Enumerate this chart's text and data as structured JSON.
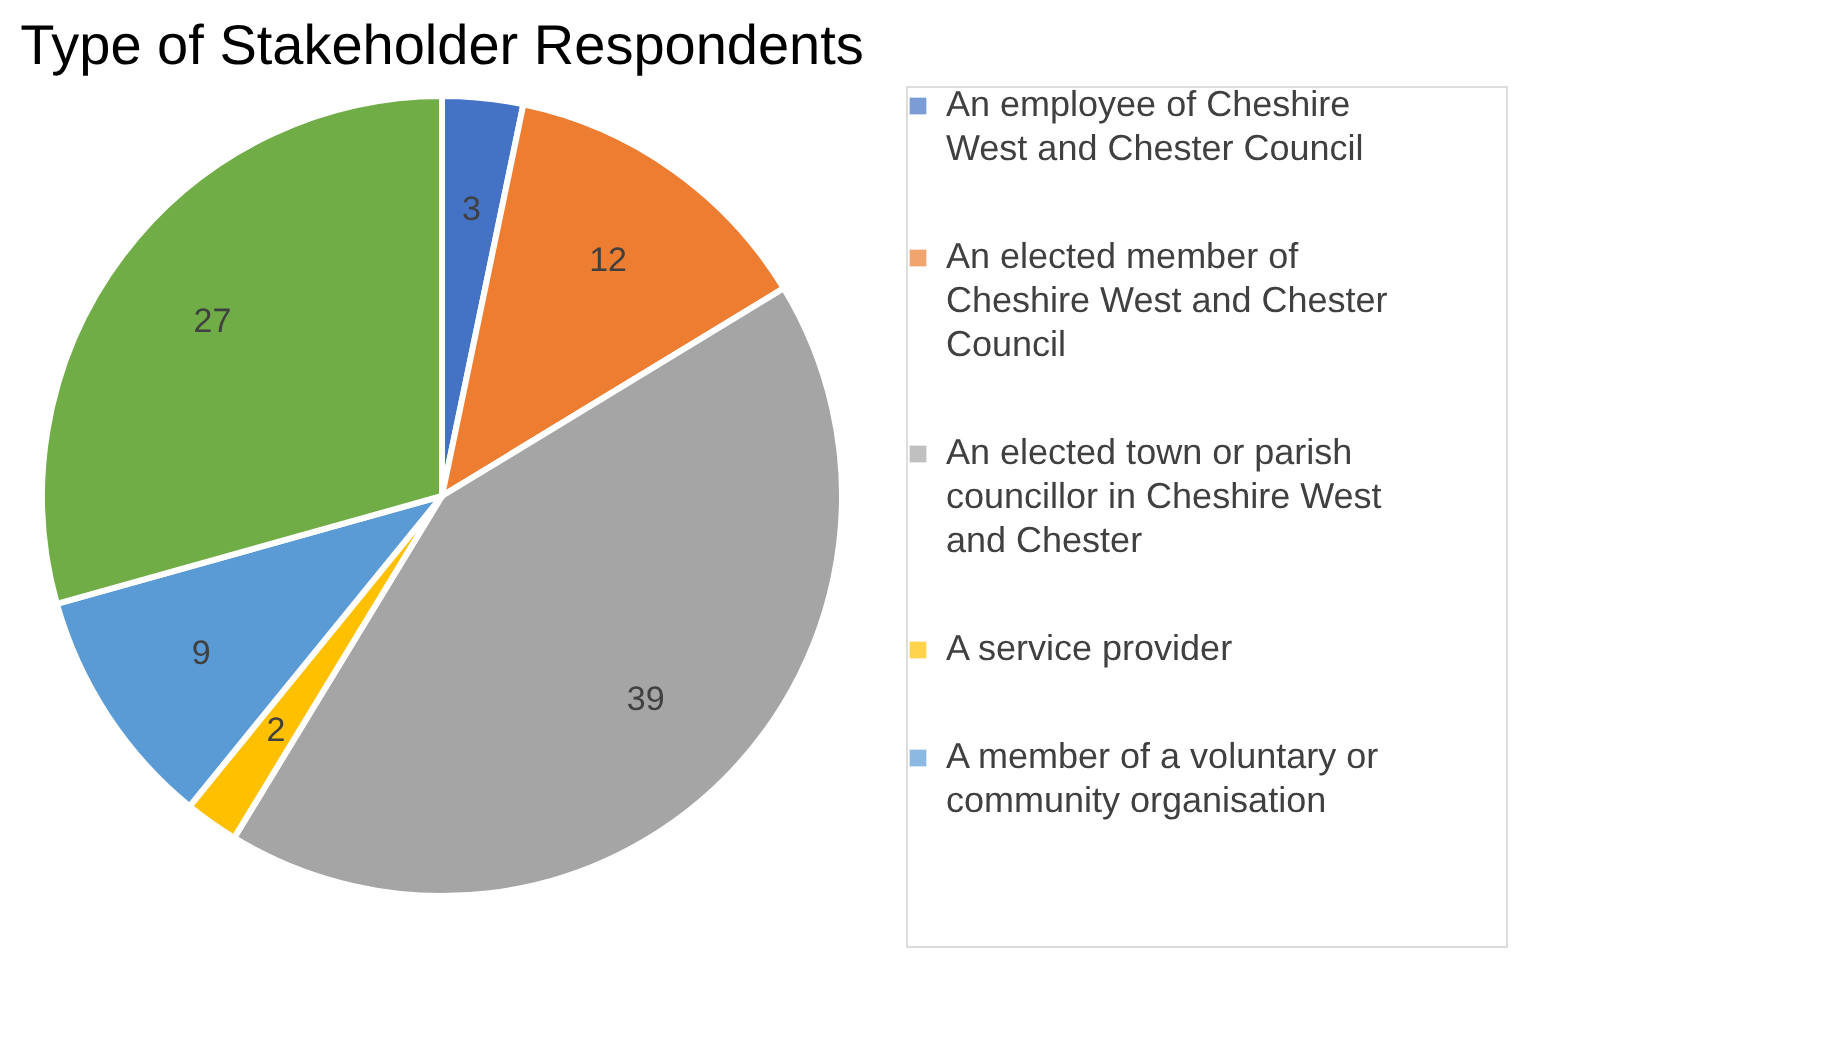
{
  "chart_data": {
    "type": "pie",
    "title": "Type of Stakeholder Respondents",
    "categories": [
      "An employee of Cheshire West and Chester Council",
      "An elected member of Cheshire West and Chester Council",
      "An elected town or parish councillor in Cheshire West and Chester",
      "A service provider",
      "A member of a voluntary or community organisation",
      null
    ],
    "values": [
      3,
      12,
      39,
      2,
      9,
      27
    ],
    "colors": [
      "#4472c4",
      "#ed7d31",
      "#a5a5a5",
      "#ffc000",
      "#5b9bd5",
      "#70ad47"
    ],
    "data_labels": true,
    "legend": "right"
  }
}
